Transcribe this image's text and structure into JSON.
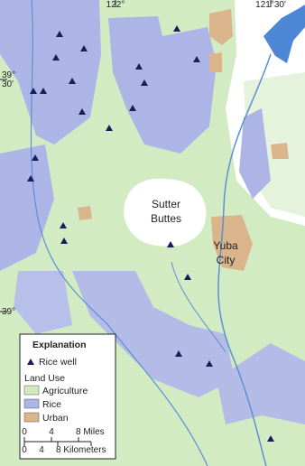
{
  "graticule": {
    "longitudes": [
      "122°",
      "121°30'"
    ],
    "latitudes": [
      [
        "39°",
        "30'"
      ],
      [
        "39°"
      ]
    ]
  },
  "places": [
    [
      "Sutter",
      "Buttes"
    ],
    [
      "Yuba",
      "City"
    ]
  ],
  "legend": {
    "title": "Explanation",
    "well": "Rice well",
    "land_use_title": "Land Use",
    "classes": [
      "Agriculture",
      "Rice",
      "Urban"
    ],
    "scale_miles": [
      "0",
      "4",
      "8 Miles"
    ],
    "scale_kilometers": [
      "0",
      "4",
      "8 Kilometers"
    ]
  }
}
